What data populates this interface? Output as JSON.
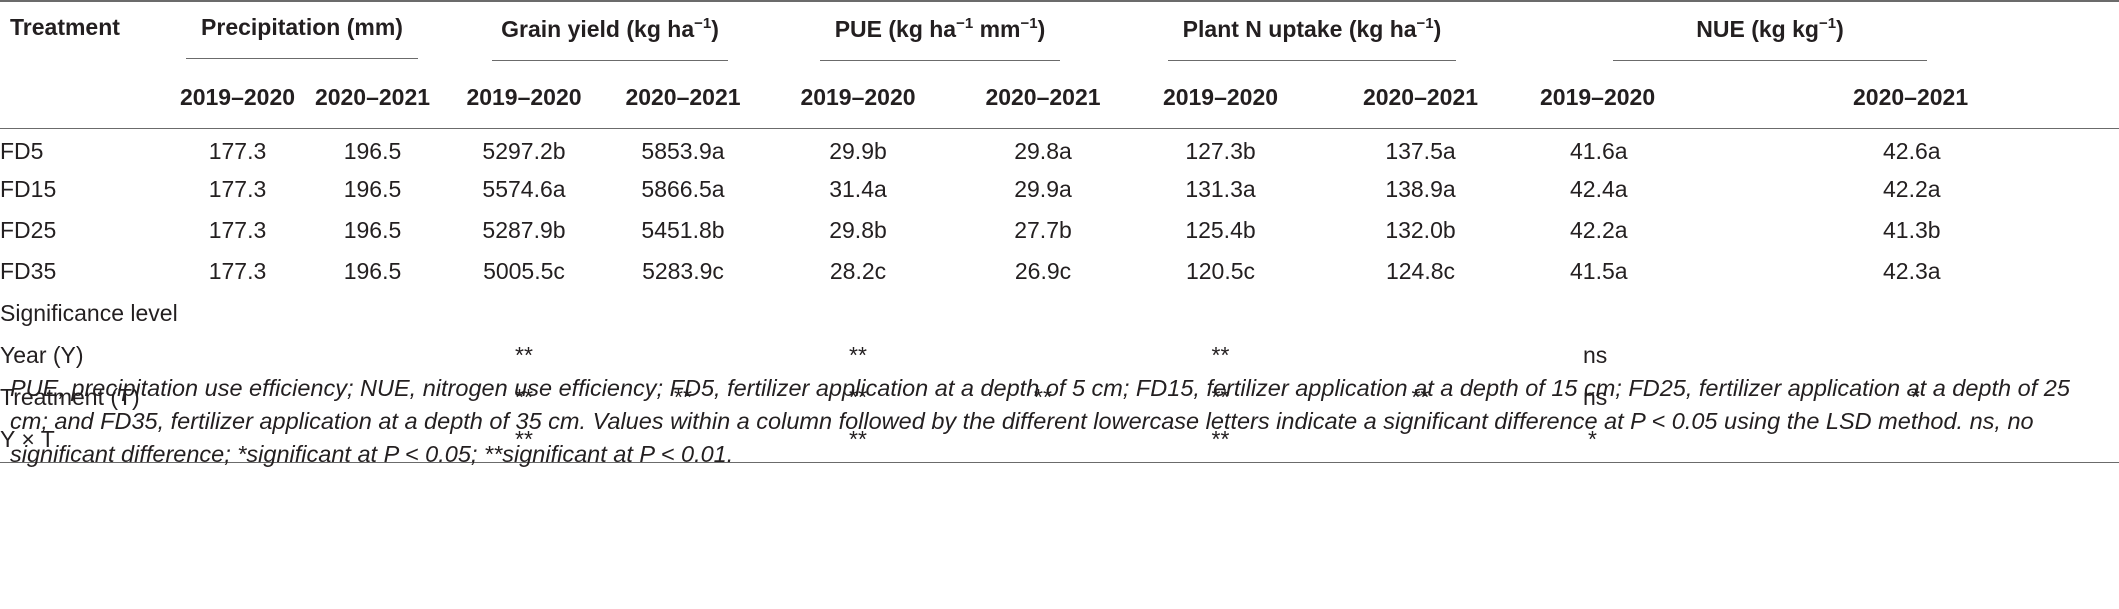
{
  "header": {
    "treatment": "Treatment",
    "groups": [
      {
        "label": "Precipitation (mm)",
        "sup": ""
      },
      {
        "label": "Grain yield (kg ha",
        "sup": "−1",
        "tail": ")"
      },
      {
        "label": "PUE (kg ha",
        "sup": "−1",
        "mid": " mm",
        "sup2": "−1",
        "tail": ")"
      },
      {
        "label": "Plant N uptake (kg ha",
        "sup": "−1",
        "tail": ")"
      },
      {
        "label": "NUE (kg kg",
        "sup": "−1",
        "tail": ")"
      }
    ],
    "years": [
      "2019–2020",
      "2020–2021"
    ]
  },
  "rows": [
    {
      "label": "FD5",
      "cells": [
        "177.3",
        "196.5",
        "5297.2b",
        "5853.9a",
        "29.9b",
        "29.8a",
        "127.3b",
        "137.5a",
        "41.6a",
        "42.6a"
      ]
    },
    {
      "label": "FD15",
      "cells": [
        "177.3",
        "196.5",
        "5574.6a",
        "5866.5a",
        "31.4a",
        "29.9a",
        "131.3a",
        "138.9a",
        "42.4a",
        "42.2a"
      ]
    },
    {
      "label": "FD25",
      "cells": [
        "177.3",
        "196.5",
        "5287.9b",
        "5451.8b",
        "29.8b",
        "27.7b",
        "125.4b",
        "132.0b",
        "42.2a",
        "41.3b"
      ]
    },
    {
      "label": "FD35",
      "cells": [
        "177.3",
        "196.5",
        "5005.5c",
        "5283.9c",
        "28.2c",
        "26.9c",
        "120.5c",
        "124.8c",
        "41.5a",
        "42.3a"
      ]
    }
  ],
  "significance": {
    "title": "Significance level",
    "rows": [
      {
        "label": "Year (Y)",
        "cells": [
          "",
          "",
          "**",
          "",
          "**",
          "",
          "**",
          "",
          "ns",
          ""
        ]
      },
      {
        "label": "Treatment (T)",
        "cells": [
          "",
          "",
          "**",
          "**",
          "**",
          "**",
          "**",
          "**",
          "ns",
          "*"
        ]
      },
      {
        "label": "Y × T",
        "cells": [
          "",
          "",
          "**",
          "",
          "**",
          "",
          "**",
          "",
          "*",
          ""
        ]
      }
    ]
  },
  "footnote": "PUE, precipitation use efficiency; NUE, nitrogen use efficiency; FD5, fertilizer application at a depth of 5 cm; FD15, fertilizer application at a depth of 15 cm; FD25, fertilizer application at a depth of 25 cm; and FD35, fertilizer application at a depth of 35 cm. Values within a column followed by the different lowercase letters indicate a significant difference at P < 0.05 using the LSD method. ns, no significant difference; *significant at P < 0.05; **significant at P < 0.01."
}
